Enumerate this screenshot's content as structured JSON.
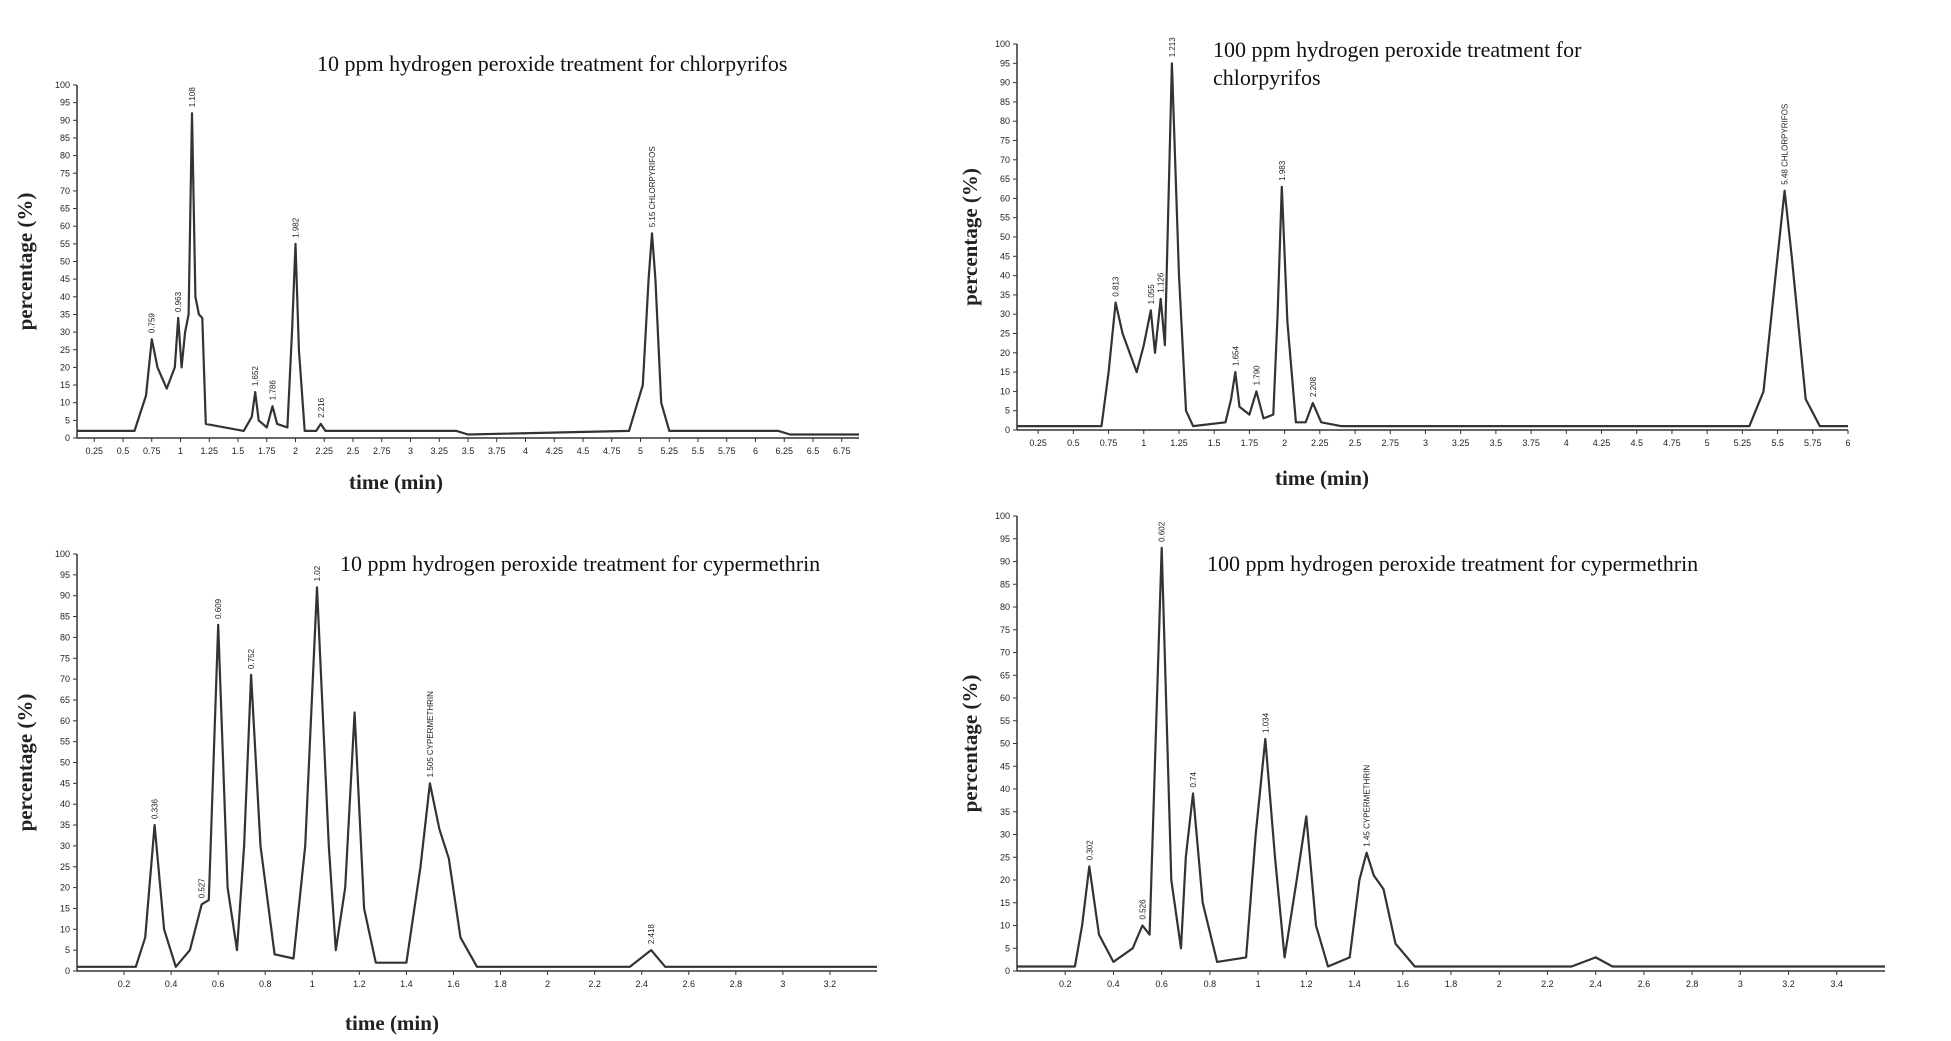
{
  "chart_data": [
    {
      "type": "line",
      "title": "10 ppm hydrogen peroxide treatment for chlorpyrifos",
      "xlabel": "time (min)",
      "ylabel": "percentage (%)",
      "xlim": [
        0.1,
        6.9
      ],
      "ylim": [
        0,
        100
      ],
      "xticks": [
        0.25,
        0.5,
        0.75,
        1,
        1.25,
        1.5,
        1.75,
        2,
        2.25,
        2.5,
        2.75,
        3,
        3.25,
        3.5,
        3.75,
        4,
        4.25,
        4.5,
        4.75,
        5,
        5.25,
        5.5,
        5.75,
        6,
        6.25,
        6.5,
        6.75
      ],
      "yticks": [
        0,
        5,
        10,
        15,
        20,
        25,
        30,
        35,
        40,
        45,
        50,
        55,
        60,
        65,
        70,
        75,
        80,
        85,
        90,
        95,
        100
      ],
      "series": [
        {
          "color": "#333333",
          "x": [
            0.1,
            0.6,
            0.7,
            0.75,
            0.8,
            0.88,
            0.95,
            0.98,
            1.01,
            1.04,
            1.07,
            1.1,
            1.13,
            1.16,
            1.19,
            1.22,
            1.55,
            1.62,
            1.65,
            1.68,
            1.75,
            1.8,
            1.84,
            1.93,
            1.97,
            2.0,
            2.03,
            2.08,
            2.18,
            2.22,
            2.26,
            3.4,
            3.5,
            4.9,
            5.02,
            5.07,
            5.1,
            5.13,
            5.18,
            5.25,
            6.2,
            6.3,
            6.9
          ],
          "values": [
            2,
            2,
            12,
            28,
            20,
            14,
            20,
            34,
            20,
            30,
            35,
            92,
            40,
            35,
            34,
            4,
            2,
            6,
            13,
            5,
            3,
            9,
            4,
            3,
            30,
            55,
            25,
            2,
            2,
            4,
            2,
            2,
            1,
            2,
            15,
            45,
            58,
            45,
            10,
            2,
            2,
            1,
            1
          ],
          "point_labels": [
            null,
            null,
            null,
            "0.759",
            null,
            null,
            null,
            "0.963",
            null,
            null,
            null,
            "1.108",
            null,
            null,
            null,
            null,
            null,
            null,
            "1.652",
            null,
            null,
            "1.786",
            null,
            null,
            null,
            "1.982",
            null,
            null,
            null,
            "2.216",
            null,
            null,
            null,
            null,
            null,
            null,
            "5.15 CHLORPYRIFOS",
            null,
            null,
            null,
            null,
            null,
            null
          ]
        }
      ]
    },
    {
      "type": "line",
      "title": "100 ppm hydrogen peroxide treatment for chlorpyrifos",
      "xlabel": "time (min)",
      "ylabel": "percentage (%)",
      "xlim": [
        0.1,
        6.0
      ],
      "ylim": [
        0,
        100
      ],
      "xticks": [
        0.25,
        0.5,
        0.75,
        1,
        1.25,
        1.5,
        1.75,
        2,
        2.25,
        2.5,
        2.75,
        3,
        3.25,
        3.5,
        3.75,
        4,
        4.25,
        4.5,
        4.75,
        5,
        5.25,
        5.5,
        5.75,
        6
      ],
      "yticks": [
        0,
        5,
        10,
        15,
        20,
        25,
        30,
        35,
        40,
        45,
        50,
        55,
        60,
        65,
        70,
        75,
        80,
        85,
        90,
        95,
        100
      ],
      "series": [
        {
          "color": "#333333",
          "x": [
            0.1,
            0.7,
            0.75,
            0.8,
            0.85,
            0.95,
            1.0,
            1.05,
            1.08,
            1.12,
            1.15,
            1.2,
            1.25,
            1.3,
            1.35,
            1.58,
            1.62,
            1.65,
            1.68,
            1.75,
            1.8,
            1.85,
            1.92,
            1.95,
            1.98,
            2.02,
            2.08,
            2.15,
            2.2,
            2.26,
            2.4,
            5.3,
            5.4,
            5.5,
            5.55,
            5.6,
            5.7,
            5.8,
            6.0
          ],
          "values": [
            1,
            1,
            15,
            33,
            25,
            15,
            22,
            31,
            20,
            34,
            22,
            95,
            40,
            5,
            1,
            2,
            8,
            15,
            6,
            4,
            10,
            3,
            4,
            30,
            63,
            28,
            2,
            2,
            7,
            2,
            1,
            1,
            10,
            45,
            62,
            45,
            8,
            1,
            1
          ],
          "point_labels": [
            null,
            null,
            null,
            "0.813",
            null,
            null,
            null,
            "1.055",
            null,
            "1.126",
            null,
            "1.213",
            null,
            null,
            null,
            null,
            null,
            "1.654",
            null,
            null,
            "1.790",
            null,
            null,
            null,
            "1.983",
            null,
            null,
            null,
            "2.208",
            null,
            null,
            null,
            null,
            null,
            "5.48 CHLORPYRIFOS",
            null,
            null,
            null,
            null
          ]
        }
      ]
    },
    {
      "type": "line",
      "title": "10 ppm hydrogen peroxide treatment for cypermethrin",
      "xlabel": "time (min)",
      "ylabel": "percentage (%)",
      "xlim": [
        0,
        3.4
      ],
      "ylim": [
        0,
        100
      ],
      "xticks": [
        0.2,
        0.4,
        0.6,
        0.8,
        1,
        1.2,
        1.4,
        1.6,
        1.8,
        2,
        2.2,
        2.4,
        2.6,
        2.8,
        3,
        3.2
      ],
      "yticks": [
        0,
        5,
        10,
        15,
        20,
        25,
        30,
        35,
        40,
        45,
        50,
        55,
        60,
        65,
        70,
        75,
        80,
        85,
        90,
        95,
        100
      ],
      "series": [
        {
          "color": "#333333",
          "x": [
            0,
            0.25,
            0.29,
            0.33,
            0.37,
            0.42,
            0.48,
            0.53,
            0.56,
            0.6,
            0.64,
            0.68,
            0.71,
            0.74,
            0.78,
            0.84,
            0.92,
            0.97,
            1.02,
            1.07,
            1.1,
            1.14,
            1.18,
            1.22,
            1.27,
            1.4,
            1.46,
            1.5,
            1.54,
            1.58,
            1.63,
            1.7,
            2.35,
            2.44,
            2.5,
            3.4
          ],
          "values": [
            1,
            1,
            8,
            35,
            10,
            1,
            5,
            16,
            17,
            83,
            20,
            5,
            30,
            71,
            30,
            4,
            3,
            30,
            92,
            30,
            5,
            20,
            62,
            15,
            2,
            2,
            25,
            45,
            34,
            27,
            8,
            1,
            1,
            5,
            1,
            1
          ],
          "point_labels": [
            null,
            null,
            null,
            "0.336",
            null,
            null,
            null,
            "0.527",
            null,
            "0.609",
            null,
            null,
            null,
            "0.752",
            null,
            null,
            null,
            null,
            "1.02",
            null,
            null,
            null,
            null,
            null,
            null,
            null,
            null,
            "1.505 CYPERMETHRIN",
            null,
            null,
            null,
            null,
            null,
            "2.418",
            null,
            null
          ]
        }
      ]
    },
    {
      "type": "line",
      "title": "100 ppm hydrogen peroxide treatment for cypermethrin",
      "ylabel": "percentage (%)",
      "xlim": [
        0,
        3.6
      ],
      "ylim": [
        0,
        100
      ],
      "xticks": [
        0.2,
        0.4,
        0.6,
        0.8,
        1,
        1.2,
        1.4,
        1.6,
        1.8,
        2,
        2.2,
        2.4,
        2.6,
        2.8,
        3,
        3.2,
        3.4
      ],
      "yticks": [
        0,
        5,
        10,
        15,
        20,
        25,
        30,
        35,
        40,
        45,
        50,
        55,
        60,
        65,
        70,
        75,
        80,
        85,
        90,
        95,
        100
      ],
      "series": [
        {
          "color": "#333333",
          "x": [
            0,
            0.24,
            0.27,
            0.3,
            0.34,
            0.4,
            0.48,
            0.52,
            0.55,
            0.6,
            0.64,
            0.68,
            0.7,
            0.73,
            0.77,
            0.83,
            0.95,
            0.99,
            1.03,
            1.07,
            1.11,
            1.16,
            1.2,
            1.24,
            1.29,
            1.38,
            1.42,
            1.45,
            1.48,
            1.52,
            1.57,
            1.65,
            2.3,
            2.4,
            2.47,
            3.6
          ],
          "values": [
            1,
            1,
            10,
            23,
            8,
            2,
            5,
            10,
            8,
            93,
            20,
            5,
            25,
            39,
            15,
            2,
            3,
            30,
            51,
            25,
            3,
            20,
            34,
            10,
            1,
            3,
            20,
            26,
            21,
            18,
            6,
            1,
            1,
            3,
            1,
            1
          ],
          "point_labels": [
            null,
            null,
            null,
            "0.302",
            null,
            null,
            null,
            "0.526",
            null,
            "0.602",
            null,
            null,
            null,
            "0.74",
            null,
            null,
            null,
            null,
            "1.034",
            null,
            null,
            null,
            null,
            null,
            null,
            null,
            null,
            "1.45 CYPERMETHRIN",
            null,
            null,
            null,
            null,
            null,
            null,
            null,
            null
          ]
        }
      ]
    }
  ]
}
